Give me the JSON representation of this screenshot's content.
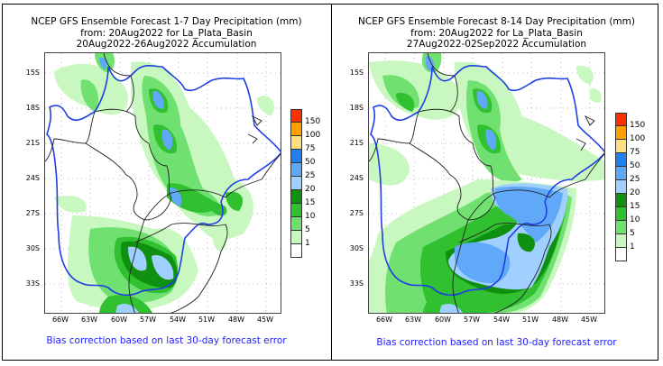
{
  "panels": [
    {
      "title_line1": "NCEP GFS Ensemble Forecast 1-7 Day Precipitation (mm)",
      "title_line2": "from: 20Aug2022   for La_Plata_Basin",
      "title_line3": "20Aug2022-26Aug2022 Accumulation",
      "footer": "Bias correction based on last 30-day forecast error"
    },
    {
      "title_line1": "NCEP GFS Ensemble Forecast 8-14 Day Precipitation (mm)",
      "title_line2": "from: 20Aug2022   for La_Plata_Basin",
      "title_line3": "27Aug2022-02Sep2022 Accumulation",
      "footer": "Bias correction based on last 30-day forecast error"
    }
  ],
  "axes": {
    "lat_labels": [
      "15S",
      "18S",
      "21S",
      "24S",
      "27S",
      "30S",
      "33S"
    ],
    "lon_labels": [
      "66W",
      "63W",
      "60W",
      "57W",
      "54W",
      "51W",
      "48W",
      "45W"
    ]
  },
  "legend": {
    "labels": [
      "150",
      "100",
      "75",
      "50",
      "25",
      "20",
      "15",
      "10",
      "5",
      "1"
    ],
    "colors": [
      "#ff3000",
      "#ffa000",
      "#ffe080",
      "#2080f0",
      "#60a8f8",
      "#a0d0ff",
      "#109010",
      "#30c030",
      "#70e070",
      "#c8f8c0",
      "#ffffff"
    ]
  },
  "colors": {
    "basin_outline": "#1f3fe6",
    "country_border": "#222222",
    "footer_text": "#2020ff"
  }
}
